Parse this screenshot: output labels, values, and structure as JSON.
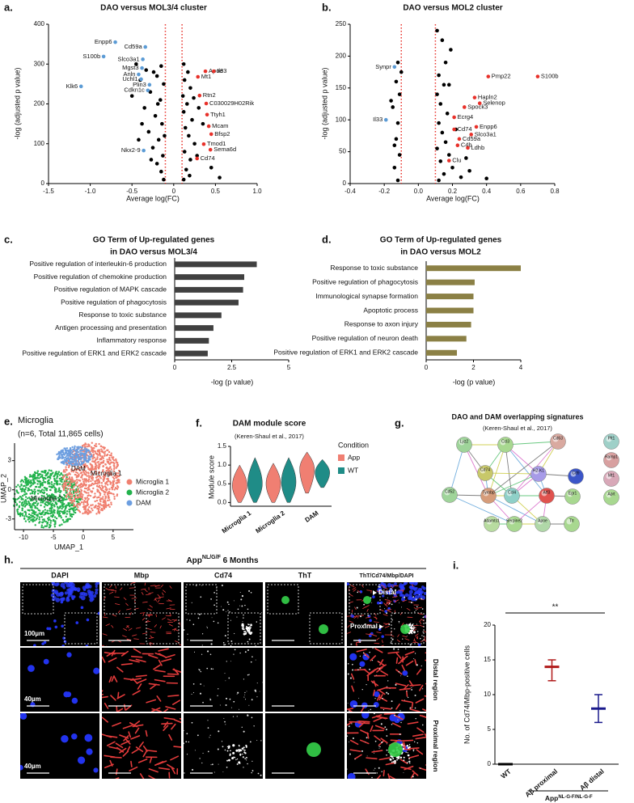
{
  "chart_data": [
    {
      "type": "scatter",
      "label": "a.",
      "title": "DAO versus MOL3/4 cluster",
      "xlabel": "Average log(FC)",
      "ylabel": "-log (adjusted p value)",
      "xlim": [
        -1.5,
        1.0
      ],
      "xticks": [
        -1.5,
        {
          "value": -1,
          "label": "-1.0"
        },
        -0.5,
        0,
        0.5,
        {
          "value": 1,
          "label": "1.0"
        }
      ],
      "ylim": [
        0,
        400
      ],
      "yticks": [
        0,
        100,
        200,
        300,
        400
      ],
      "vlines": [
        -0.1,
        0.1
      ],
      "vline_color": "#e8312a",
      "series": [
        {
          "color": "#000000",
          "x": [
            -0.12,
            -0.15,
            -0.2,
            -0.13,
            -0.25,
            -0.18,
            -0.3,
            -0.14,
            -0.22,
            -0.35,
            -0.16,
            -0.28,
            -0.12,
            -0.2,
            -0.33,
            -0.45,
            -0.4,
            -0.5,
            -0.38,
            -0.27,
            -0.11,
            -0.19,
            -0.24,
            -0.15,
            -0.42,
            0.12,
            0.15,
            0.2,
            0.13,
            0.25,
            0.18,
            0.14,
            0.22,
            0.12,
            0.3,
            0.16,
            0.11,
            0.2,
            0.13,
            0.17,
            0.12,
            0.24,
            0.35,
            0.28,
            0.45,
            0.55,
            0.19
          ],
          "values": [
            10,
            30,
            50,
            70,
            90,
            110,
            130,
            150,
            170,
            190,
            210,
            230,
            250,
            270,
            285,
            300,
            260,
            220,
            150,
            60,
            120,
            200,
            280,
            295,
            110,
            10,
            35,
            60,
            80,
            100,
            120,
            140,
            160,
            180,
            190,
            200,
            220,
            240,
            260,
            280,
            300,
            215,
            150,
            70,
            40,
            15,
            20
          ]
        },
        {
          "color": "#5b9bd5",
          "labels": [
            "Enpp6",
            "Cd59a",
            "Slco3a1",
            "S100b",
            "Mgst3",
            "Anln",
            "Uchl1",
            "Plin3",
            "Klk6",
            "Cdkn1c",
            "Nkx2-9"
          ],
          "x": [
            -0.7,
            -0.34,
            -0.37,
            -0.84,
            -0.38,
            -0.42,
            -0.39,
            -0.29,
            -1.11,
            -0.31,
            -0.36
          ],
          "values": [
            355,
            343,
            312,
            319,
            290,
            274,
            262,
            248,
            244,
            234,
            83
          ]
        },
        {
          "color": "#e8312a",
          "labels": [
            "Apoe",
            "Il33",
            "Mt1",
            "Rtn2",
            "C030029H02Rik",
            "Ttyh1",
            "Mcam",
            "Bfsp2",
            "Tmod1",
            "Sema6d",
            "Cd74"
          ],
          "x": [
            0.38,
            0.48,
            0.29,
            0.31,
            0.39,
            0.4,
            0.42,
            0.45,
            0.36,
            0.44,
            0.28
          ],
          "values": [
            282,
            282,
            268,
            221,
            201,
            173,
            144,
            124,
            99,
            85,
            63
          ]
        }
      ]
    },
    {
      "type": "scatter",
      "label": "b.",
      "title": "DAO versus MOL2 cluster",
      "xlabel": "Average log(FC)",
      "ylabel": "-log (adjusted p value)",
      "xlim": [
        -0.4,
        0.8
      ],
      "xticks": [
        -0.4,
        -0.2,
        {
          "value": 0,
          "label": "0.0"
        },
        0.2,
        0.4,
        0.6,
        0.8
      ],
      "ylim": [
        0,
        250
      ],
      "yticks": [
        0,
        50,
        100,
        150,
        200,
        250
      ],
      "vlines": [
        -0.1,
        0.1
      ],
      "vline_color": "#e8312a",
      "series": [
        {
          "color": "#000000",
          "x": [
            -0.12,
            -0.14,
            -0.11,
            -0.13,
            -0.12,
            -0.15,
            -0.11,
            -0.13,
            -0.1,
            -0.12,
            -0.16,
            -0.14,
            0.12,
            0.15,
            0.2,
            0.25,
            0.13,
            0.18,
            0.11,
            0.16,
            0.14,
            0.12,
            0.17,
            0.13,
            0.11,
            0.15,
            0.12,
            0.16,
            0.19,
            0.14,
            0.3,
            0.4,
            0.22,
            0.28,
            0.11,
            0.18
          ],
          "values": [
            5,
            25,
            45,
            70,
            95,
            120,
            140,
            160,
            175,
            190,
            130,
            60,
            5,
            15,
            25,
            10,
            35,
            45,
            55,
            65,
            80,
            95,
            110,
            125,
            140,
            155,
            170,
            190,
            210,
            225,
            20,
            8,
            85,
            40,
            240,
            155
          ]
        },
        {
          "color": "#5b9bd5",
          "labels": [
            "Synpr",
            "Il33"
          ],
          "x": [
            -0.14,
            -0.19
          ],
          "values": [
            183,
            100
          ]
        },
        {
          "color": "#e8312a",
          "labels": [
            "Pmp22",
            "S100b",
            "Hapln2",
            "Selenop",
            "Spock3",
            "Ecrg4",
            "Cd74",
            "Enpp6",
            "Slco3a1",
            "Cd59a",
            "C4b",
            "Ldhb",
            "Clu"
          ],
          "x": [
            0.41,
            0.7,
            0.33,
            0.36,
            0.27,
            0.21,
            0.21,
            0.34,
            0.31,
            0.24,
            0.23,
            0.29,
            0.18
          ],
          "values": [
            168,
            168,
            135,
            126,
            120,
            104,
            85,
            89,
            77,
            70,
            60,
            56,
            36
          ]
        }
      ]
    },
    {
      "type": "barh",
      "label": "c.",
      "title": [
        "GO Term of Up-regulated genes",
        "in DAO versus MOL3/4"
      ],
      "xlabel": "-log (p value)",
      "categories": [
        "Positive regulation of interleukin-6 production",
        "Positive regulation of chemokine production",
        "Positive regulation of MAPK cascade",
        "Positive regulation of phagocytosis",
        "Response to toxic substance",
        "Antigen processing and presentation",
        "Inflammatory response",
        "Positive regulation of ERK1 and ERK2 cascade"
      ],
      "values": [
        3.6,
        3.05,
        3.0,
        2.8,
        2.05,
        1.7,
        1.5,
        1.45
      ],
      "color": "#404040",
      "xlim": [
        0,
        5
      ],
      "xticks": [
        0,
        2.5,
        5
      ]
    },
    {
      "type": "barh",
      "label": "d.",
      "title": [
        "GO Term of Up-regulated genes",
        "in DAO versus MOL2"
      ],
      "xlabel": "-log (p value)",
      "categories": [
        "Response to toxic substance",
        "Positive regulation of phagocytosis",
        "Immunological synapse formation",
        "Apoptotic process",
        "Response to axon injury",
        "Positive regulation of neuron death",
        "Positive regulation of ERK1 and ERK2 cascade"
      ],
      "values": [
        4.0,
        2.05,
        2.0,
        2.0,
        1.9,
        1.7,
        1.3
      ],
      "color": "#8b8045",
      "xlim": [
        0,
        4
      ],
      "xticks": [
        0,
        2,
        4
      ]
    },
    {
      "type": "violin",
      "label": "f.",
      "title": "DAM module score",
      "subtitle": "(Keren-Shaul et al., 2017)",
      "ylabel": "Module score",
      "categories": [
        "Microglia 1",
        "Microglia 2",
        "DAM"
      ],
      "ylim": [
        -0.1,
        1.5
      ],
      "yticks": [
        {
          "value": 0,
          "label": "0.0"
        },
        0.5,
        {
          "value": 1,
          "label": "1.0"
        },
        1.5
      ],
      "legend_title": "Condition",
      "series": [
        {
          "name": "App",
          "color": "#f07f72",
          "values": [
            0.45,
            0.5,
            0.9
          ],
          "min": [
            0,
            0,
            0.25
          ],
          "max": [
            1.0,
            1.05,
            1.35
          ]
        },
        {
          "name": "WT",
          "color": "#1f8c87",
          "values": [
            0.5,
            0.55,
            0.8
          ],
          "min": [
            0,
            0,
            0.4
          ],
          "max": [
            1.2,
            1.2,
            1.15
          ]
        }
      ]
    },
    {
      "type": "errorbar",
      "label": "i.",
      "ylabel": "No. of Cd74/Mbp-positive cells",
      "categories": [
        "WT",
        "Aβ proximal",
        "Aβ distal"
      ],
      "values": [
        0,
        14,
        8
      ],
      "low": [
        0,
        12,
        6
      ],
      "high": [
        0,
        15,
        10
      ],
      "colors": [
        "#000000",
        "#b01a1a",
        "#1a1a8c"
      ],
      "ylim": [
        0,
        20
      ],
      "yticks": [
        0,
        5,
        10,
        15,
        20
      ],
      "annotation": "**",
      "group_label": {
        "base": "App",
        "sup": "NL-G-F/NL-G-F"
      }
    }
  ],
  "umap": {
    "label": "e.",
    "title": "Microglia",
    "subtitle": "(n=6, Total 11,865 cells)",
    "xlabel": "UMAP_1",
    "ylabel": "UMAP_2",
    "xlim": [
      -11.5,
      8.4
    ],
    "xticks": [
      -10,
      -5,
      0,
      5
    ],
    "ylim": [
      -4.1,
      4.8
    ],
    "yticks": [
      -3,
      0,
      3
    ],
    "clusters": [
      {
        "name": "Microglia 1",
        "color": "#f08070"
      },
      {
        "name": "Microglia 2",
        "color": "#22b24c"
      },
      {
        "name": "DAM",
        "color": "#6c9ee0"
      }
    ]
  },
  "network": {
    "label": "g.",
    "title": "DAO and DAM overlapping signatures",
    "subtitle": "(Keren-Shaul et al., 2017)",
    "nodes": [
      {
        "label": "Lyz2"
      },
      {
        "label": "Ccl3"
      },
      {
        "label": "Cd63"
      },
      {
        "label": "Cd74"
      },
      {
        "label": "H2-K1"
      },
      {
        "label": "Cd9"
      },
      {
        "label": "Tyrobp"
      },
      {
        "label": "Ccl4"
      },
      {
        "label": "Atf3"
      },
      {
        "label": "Egr1"
      },
      {
        "label": "Cd52"
      },
      {
        "label": "Adamts1"
      },
      {
        "label": "Serpine2"
      },
      {
        "label": "Apoe"
      },
      {
        "label": "Ttr"
      },
      {
        "label": "Plt1"
      },
      {
        "label": "Ramp1"
      },
      {
        "label": "Mt1"
      },
      {
        "label": "Aprt"
      }
    ]
  },
  "microscopy": {
    "label": "h.",
    "header": {
      "base": "App",
      "sup": "NL/G/F",
      "rest": " 6 Months"
    },
    "columns": [
      "DAPI",
      "Mbp",
      "Cd74",
      "ThT",
      "ThT/Cd74/Mbp/DAPI"
    ],
    "row_labels": [
      "Distal region",
      "Proximal region"
    ],
    "scale_labels": [
      "100µm",
      "40µm",
      "40µm"
    ],
    "inset_labels": [
      "Distal",
      "Proximal"
    ]
  }
}
